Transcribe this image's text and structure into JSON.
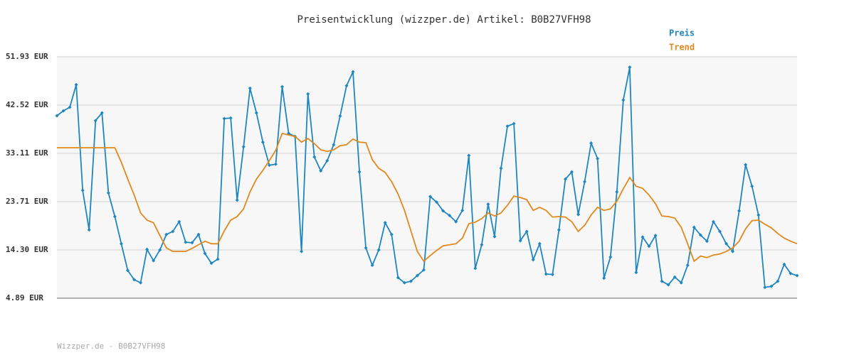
{
  "chart_data": {
    "type": "line",
    "title": "Preisentwicklung (wizzper.de) Artikel: B0B27VFH98",
    "ylim": [
      4.89,
      51.93
    ],
    "yticks": [
      {
        "value": 4.89,
        "label": "4.89 EUR"
      },
      {
        "value": 14.3,
        "label": "14.30 EUR"
      },
      {
        "value": 23.71,
        "label": "23.71 EUR"
      },
      {
        "value": 33.11,
        "label": "33.11 EUR"
      },
      {
        "value": 42.52,
        "label": "42.52 EUR"
      },
      {
        "value": 51.93,
        "label": "51.93 EUR"
      }
    ],
    "grid": true,
    "legend": "top-right",
    "series": [
      {
        "name": "Preis",
        "color": "#1f86bf",
        "markers": true,
        "values": [
          40.45,
          41.4,
          42.1,
          46.5,
          25.9,
          18.2,
          39.5,
          41.0,
          25.4,
          20.8,
          15.5,
          10.3,
          8.5,
          7.9,
          14.4,
          12.2,
          14.3,
          17.3,
          17.9,
          19.8,
          15.8,
          15.7,
          17.3,
          13.6,
          11.7,
          12.5,
          39.9,
          40.0,
          24.0,
          34.4,
          45.8,
          41.0,
          35.3,
          30.8,
          31.0,
          46.1,
          37.0,
          36.4,
          14.0,
          44.7,
          32.4,
          29.7,
          31.7,
          34.8,
          40.4,
          46.3,
          49.0,
          29.5,
          14.7,
          11.3,
          14.3,
          19.6,
          17.3,
          8.9,
          7.9,
          8.2,
          9.3,
          10.4,
          24.7,
          23.6,
          21.9,
          21.0,
          19.8,
          22.0,
          32.7,
          10.7,
          15.3,
          23.2,
          16.9,
          30.2,
          38.4,
          38.9,
          16.1,
          17.9,
          12.4,
          15.5,
          9.6,
          9.5,
          18.2,
          28.1,
          29.5,
          21.2,
          27.6,
          35.1,
          32.1,
          8.8,
          12.9,
          25.6,
          43.5,
          49.9,
          9.9,
          16.8,
          15.0,
          17.1,
          8.2,
          7.5,
          9.0,
          7.9,
          11.3,
          18.7,
          17.2,
          16.0,
          19.8,
          17.9,
          15.5,
          14.0,
          21.9,
          30.9,
          26.7,
          21.1,
          7.0,
          7.2,
          8.2,
          11.5,
          9.7,
          9.3
        ]
      },
      {
        "name": "Trend",
        "color": "#e0891c",
        "markers": false,
        "values": [
          34.2,
          34.2,
          34.2,
          34.2,
          34.2,
          34.2,
          34.2,
          34.2,
          34.2,
          34.2,
          31.4,
          28.1,
          25.0,
          21.5,
          20.1,
          19.6,
          17.1,
          14.7,
          14.0,
          14.0,
          14.0,
          14.6,
          15.3,
          16.0,
          15.5,
          15.5,
          18.0,
          20.1,
          20.8,
          22.3,
          25.6,
          28.1,
          29.8,
          31.7,
          33.7,
          37.0,
          36.7,
          36.4,
          35.3,
          36.0,
          35.0,
          33.8,
          33.5,
          33.8,
          34.6,
          34.8,
          35.9,
          35.3,
          35.2,
          31.9,
          30.2,
          29.4,
          27.6,
          25.2,
          22.0,
          18.0,
          14.0,
          12.1,
          13.2,
          14.2,
          15.1,
          15.3,
          15.5,
          16.6,
          19.4,
          19.7,
          20.4,
          21.5,
          20.9,
          21.5,
          23.0,
          24.8,
          24.5,
          24.1,
          22.0,
          22.6,
          22.0,
          20.7,
          20.8,
          20.7,
          19.8,
          17.9,
          19.1,
          21.1,
          22.6,
          22.0,
          22.3,
          23.8,
          26.2,
          28.4,
          26.7,
          26.3,
          25.0,
          23.3,
          20.9,
          20.8,
          20.5,
          18.7,
          15.5,
          12.1,
          13.1,
          12.8,
          13.3,
          13.5,
          14.0,
          14.7,
          16.0,
          18.4,
          20.0,
          20.1,
          19.3,
          18.6,
          17.5,
          16.6,
          16.0,
          15.5
        ]
      }
    ]
  },
  "footer": "Wizzper.de - B0B27VFH98"
}
